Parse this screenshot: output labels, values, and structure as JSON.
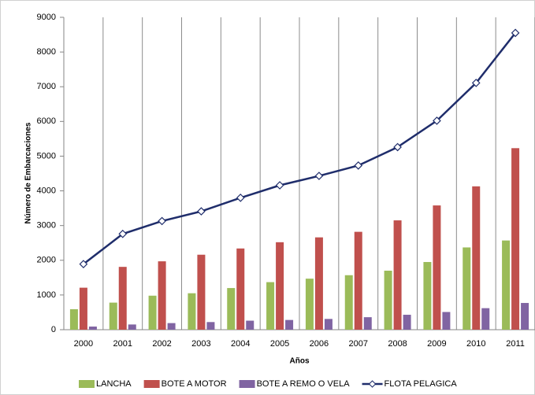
{
  "chart_data": {
    "type": "bar",
    "y_label": "Número de Embarcaciones",
    "x_label": "Años",
    "categories": [
      "2000",
      "2001",
      "2002",
      "2003",
      "2004",
      "2005",
      "2006",
      "2007",
      "2008",
      "2009",
      "2010",
      "2011"
    ],
    "series": [
      {
        "name": "LANCHA",
        "color": "#9bbb59",
        "values": [
          590,
          780,
          980,
          1050,
          1200,
          1370,
          1470,
          1570,
          1700,
          1950,
          2370,
          2570
        ]
      },
      {
        "name": "BOTE A MOTOR",
        "color": "#c0504d",
        "values": [
          1210,
          1810,
          1970,
          2160,
          2340,
          2520,
          2660,
          2820,
          3150,
          3580,
          4130,
          5230
        ]
      },
      {
        "name": "BOTE A REMO O VELA",
        "color": "#8064a2",
        "values": [
          90,
          150,
          190,
          220,
          260,
          280,
          310,
          360,
          430,
          510,
          620,
          770
        ]
      },
      {
        "name": "FLOTA PELAGICA",
        "color": "#1f2d6b",
        "type": "line",
        "values": [
          1890,
          2760,
          3130,
          3410,
          3800,
          4160,
          4430,
          4730,
          5260,
          6020,
          7110,
          8550
        ]
      }
    ],
    "ylim": [
      0,
      9000
    ],
    "yticks": [
      0,
      1000,
      2000,
      3000,
      4000,
      5000,
      6000,
      7000,
      8000,
      9000
    ],
    "grid": "x",
    "legend": "bottom"
  }
}
